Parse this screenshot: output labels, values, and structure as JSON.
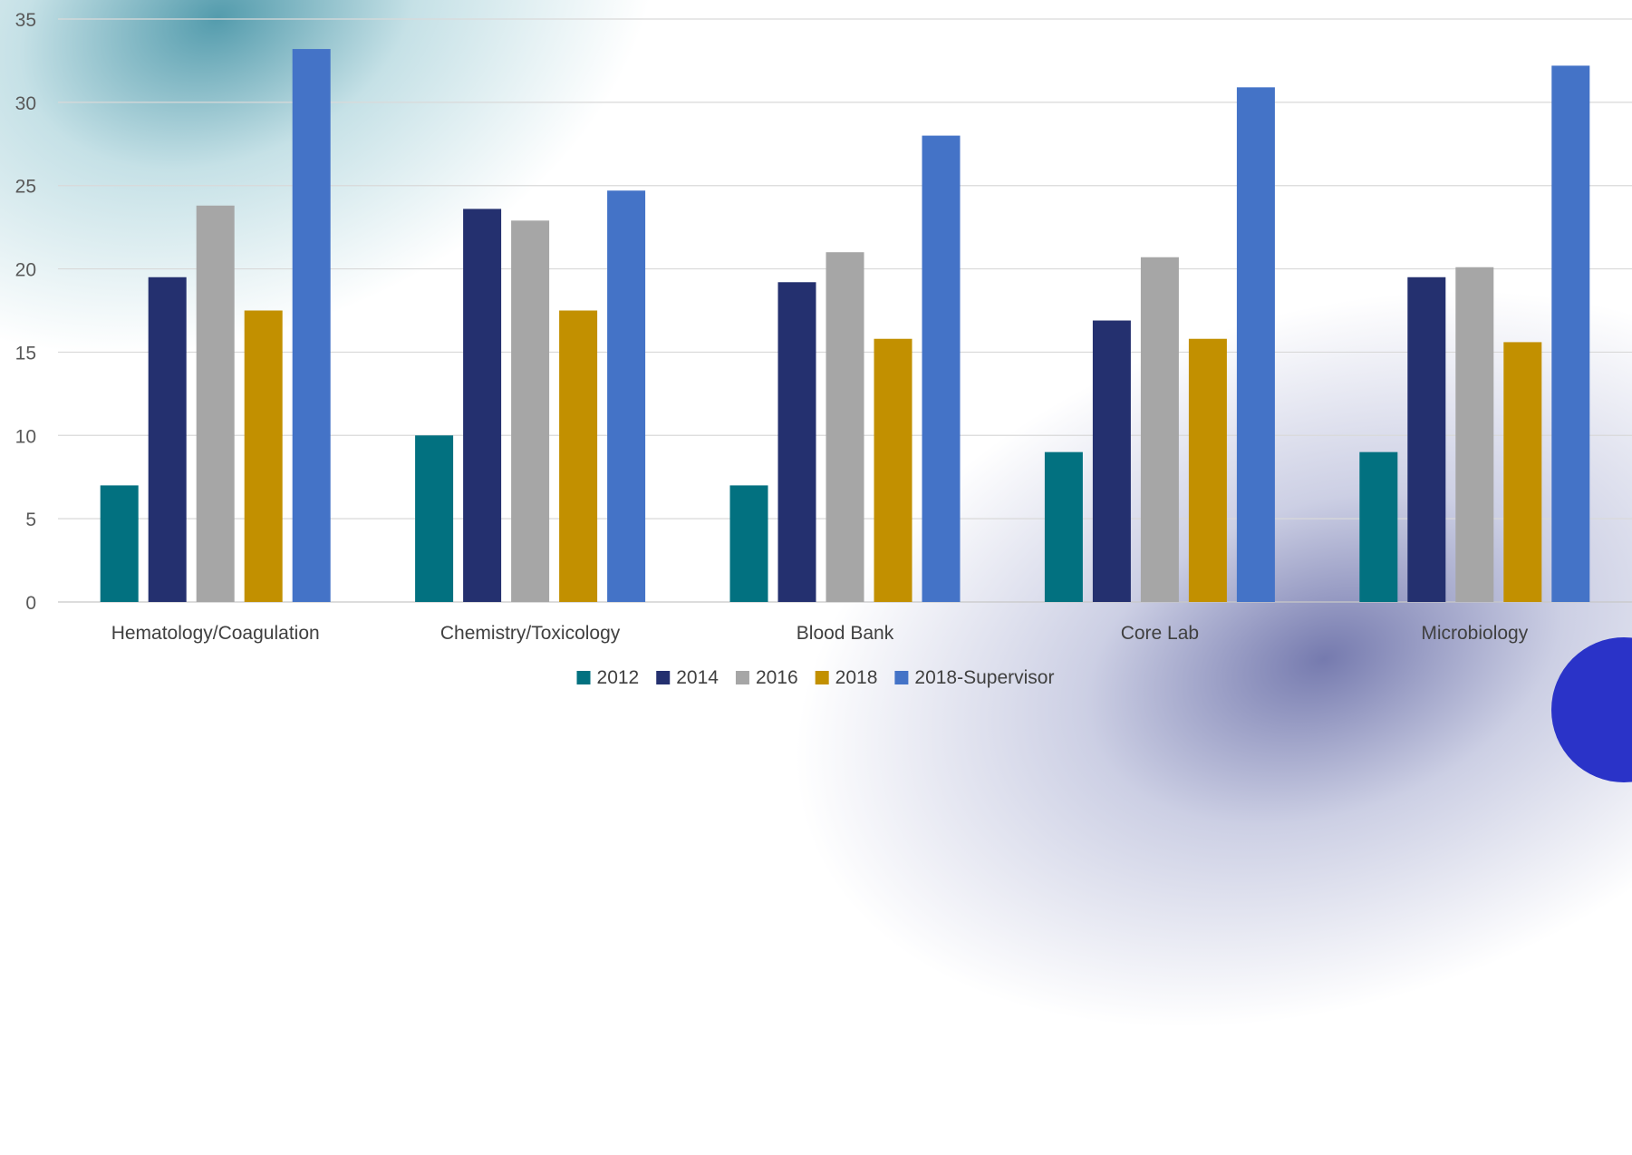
{
  "chart_data": {
    "type": "bar",
    "title": "",
    "xlabel": "",
    "ylabel": "",
    "ylim": [
      0,
      35
    ],
    "yticks": [
      0,
      5,
      10,
      15,
      20,
      25,
      30,
      35
    ],
    "grid": true,
    "legend_position": "bottom",
    "categories": [
      "Hematology/Coagulation",
      "Chemistry/Toxicology",
      "Blood Bank",
      "Core Lab",
      "Microbiology"
    ],
    "series": [
      {
        "name": "2012",
        "color": "#027180",
        "values": [
          7,
          10,
          7,
          9,
          9
        ]
      },
      {
        "name": "2014",
        "color": "#24306f",
        "values": [
          19.5,
          23.6,
          19.2,
          16.9,
          19.5
        ]
      },
      {
        "name": "2016",
        "color": "#a6a6a6",
        "values": [
          23.8,
          22.9,
          21,
          20.7,
          20.1
        ]
      },
      {
        "name": "2018",
        "color": "#c29000",
        "values": [
          17.5,
          17.5,
          15.8,
          15.8,
          15.6
        ]
      },
      {
        "name": "2018-Supervisor",
        "color": "#4473c7",
        "values": [
          33.2,
          24.7,
          28,
          30.9,
          32.2
        ]
      }
    ]
  }
}
